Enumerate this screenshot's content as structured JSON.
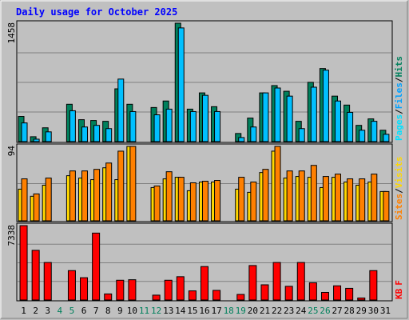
{
  "title": "Daily usage for October 2025",
  "colors": {
    "background": "#c0c0c0",
    "title": "#0000ff",
    "hits": "#00805c",
    "files": "#00c0ff",
    "pages": "#00e0ff",
    "sites": "#ffd800",
    "visits": "#ff8000",
    "kbytes": "#ff0000",
    "weekday": "#000000",
    "weekend": "#00805c",
    "grid": "#808080"
  },
  "chart_data": [
    {
      "type": "bar",
      "panel": "hits-files-pages",
      "ymax_label": "1458",
      "legend": [
        "Pages",
        "/",
        "Files",
        "/",
        "Hits"
      ],
      "categories": [
        "1",
        "2",
        "3",
        "4",
        "5",
        "6",
        "7",
        "8",
        "9",
        "10",
        "11",
        "12",
        "13",
        "14",
        "15",
        "16",
        "17",
        "18",
        "19",
        "20",
        "21",
        "22",
        "23",
        "24",
        "25",
        "26",
        "27",
        "28",
        "29",
        "30",
        "31"
      ],
      "series": [
        {
          "name": "Hits",
          "values": [
            310,
            60,
            170,
            0,
            460,
            270,
            260,
            250,
            650,
            460,
            0,
            420,
            500,
            1458,
            400,
            600,
            430,
            0,
            100,
            290,
            600,
            690,
            620,
            250,
            730,
            900,
            560,
            450,
            200,
            280,
            140
          ]
        },
        {
          "name": "Files",
          "values": [
            230,
            30,
            120,
            0,
            380,
            180,
            200,
            160,
            770,
            370,
            0,
            330,
            400,
            1400,
            370,
            570,
            370,
            0,
            50,
            180,
            600,
            660,
            560,
            160,
            670,
            880,
            500,
            360,
            140,
            250,
            90
          ]
        }
      ],
      "ylim": [
        0,
        1458
      ]
    },
    {
      "type": "bar",
      "panel": "sites-visits",
      "ymax_label": "94",
      "legend": [
        "Sites",
        "/",
        "Visits"
      ],
      "categories": [
        "1",
        "2",
        "3",
        "4",
        "5",
        "6",
        "7",
        "8",
        "9",
        "10",
        "11",
        "12",
        "13",
        "14",
        "15",
        "16",
        "17",
        "18",
        "19",
        "20",
        "21",
        "22",
        "23",
        "24",
        "25",
        "26",
        "27",
        "28",
        "29",
        "30",
        "31"
      ],
      "series": [
        {
          "name": "Sites",
          "values": [
            40,
            31,
            45,
            0,
            57,
            54,
            52,
            67,
            52,
            94,
            0,
            42,
            53,
            55,
            38,
            49,
            49,
            0,
            40,
            36,
            61,
            88,
            54,
            56,
            55,
            42,
            55,
            49,
            45,
            49,
            37
          ]
        },
        {
          "name": "Visits",
          "values": [
            53,
            34,
            54,
            0,
            63,
            63,
            65,
            73,
            88,
            94,
            0,
            44,
            62,
            55,
            48,
            50,
            51,
            0,
            55,
            49,
            65,
            94,
            63,
            63,
            70,
            56,
            59,
            53,
            53,
            59,
            37
          ]
        }
      ],
      "ylim": [
        0,
        94
      ]
    },
    {
      "type": "bar",
      "panel": "kbytes",
      "ymax_label": "7338",
      "legend": [
        "KB",
        "F"
      ],
      "categories": [
        "1",
        "2",
        "3",
        "4",
        "5",
        "6",
        "7",
        "8",
        "9",
        "10",
        "11",
        "12",
        "13",
        "14",
        "15",
        "16",
        "17",
        "18",
        "19",
        "20",
        "21",
        "22",
        "23",
        "24",
        "25",
        "26",
        "27",
        "28",
        "29",
        "30",
        "31"
      ],
      "series": [
        {
          "name": "KB F",
          "values": [
            7338,
            4900,
            3700,
            0,
            2900,
            2200,
            6600,
            600,
            1950,
            2000,
            0,
            480,
            1950,
            2300,
            900,
            3300,
            950,
            0,
            550,
            3400,
            1500,
            3700,
            1350,
            3700,
            1700,
            750,
            1400,
            1150,
            200,
            2900,
            0
          ]
        }
      ],
      "ylim": [
        0,
        7338
      ]
    }
  ],
  "x_axis": {
    "days": [
      "1",
      "2",
      "3",
      "4",
      "5",
      "6",
      "7",
      "8",
      "9",
      "10",
      "11",
      "12",
      "13",
      "14",
      "15",
      "16",
      "17",
      "18",
      "19",
      "20",
      "21",
      "22",
      "23",
      "24",
      "25",
      "26",
      "27",
      "28",
      "29",
      "30",
      "31"
    ],
    "weekend": [
      "4",
      "5",
      "11",
      "12",
      "18",
      "19",
      "25",
      "26"
    ]
  }
}
